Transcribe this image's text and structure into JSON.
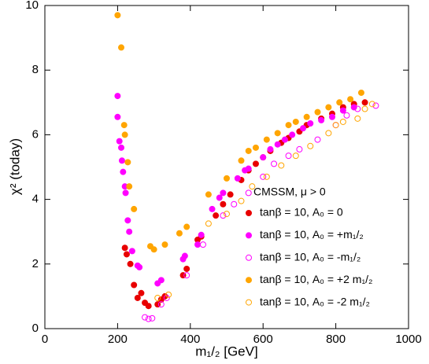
{
  "chart_data": {
    "type": "scatter",
    "xlabel": "m₁/₂ [GeV]",
    "ylabel": "χ² (today)",
    "xlim": [
      0,
      1000
    ],
    "ylim": [
      0,
      10
    ],
    "xticks": [
      0,
      200,
      400,
      600,
      800,
      1000
    ],
    "yticks": [
      0,
      2,
      4,
      6,
      8,
      10
    ],
    "legend_title": "CMSSM, μ > 0",
    "legend_position": "lower right",
    "series": [
      {
        "name": "tanβ = 10, A₀ = 0",
        "color": "#e80000",
        "marker": "filled",
        "x": [
          220,
          225,
          235,
          245,
          255,
          265,
          275,
          285,
          310,
          320,
          330,
          380,
          390,
          420,
          430,
          470,
          490,
          510,
          540,
          560,
          580,
          600,
          620,
          650,
          670,
          700,
          720,
          760,
          790,
          820,
          850,
          880
        ],
        "values": [
          2.5,
          2.3,
          2.0,
          1.35,
          0.95,
          1.1,
          0.8,
          0.7,
          0.75,
          0.9,
          1.0,
          1.65,
          1.85,
          2.75,
          2.85,
          3.5,
          3.85,
          4.15,
          4.6,
          4.9,
          5.1,
          5.3,
          5.5,
          5.75,
          5.9,
          6.1,
          6.3,
          6.5,
          6.65,
          6.85,
          6.95,
          7.0
        ]
      },
      {
        "name": "tanβ = 10, A₀ = +m₁/₂",
        "color": "#ff00ff",
        "marker": "filled",
        "x": [
          200,
          200,
          205,
          210,
          212,
          215,
          220,
          222,
          228,
          232,
          240,
          255,
          260,
          310,
          320,
          380,
          385,
          420,
          430,
          460,
          480,
          490,
          530,
          550,
          560,
          600,
          620,
          640,
          660,
          680,
          710,
          730,
          760,
          790,
          820,
          850
        ],
        "values": [
          7.2,
          6.55,
          5.8,
          5.6,
          5.2,
          4.85,
          4.4,
          4.2,
          3.35,
          3.0,
          2.4,
          1.95,
          1.9,
          1.4,
          1.5,
          2.15,
          2.25,
          2.6,
          2.9,
          3.7,
          4.05,
          4.2,
          4.65,
          4.9,
          4.95,
          5.3,
          5.55,
          5.7,
          5.85,
          6.0,
          6.2,
          6.35,
          6.45,
          6.55,
          6.75,
          6.85
        ]
      },
      {
        "name": "tanβ = 10, A₀ = -m₁/₂",
        "color": "#ff00ff",
        "marker": "open",
        "x": [
          275,
          285,
          295,
          320,
          335,
          390,
          435,
          490,
          520,
          560,
          600,
          630,
          670,
          700,
          750,
          800,
          830,
          860,
          910
        ],
        "values": [
          0.35,
          0.3,
          0.32,
          0.75,
          0.95,
          1.65,
          2.6,
          3.5,
          3.85,
          4.2,
          4.7,
          5.1,
          5.35,
          5.55,
          5.85,
          6.3,
          6.6,
          6.8,
          6.9
        ]
      },
      {
        "name": "tanβ = 10, A₀ = +2 m₁/₂",
        "color": "#ffa500",
        "marker": "filled",
        "x": [
          200,
          210,
          218,
          220,
          228,
          232,
          245,
          290,
          300,
          330,
          370,
          390,
          450,
          500,
          540,
          560,
          580,
          610,
          640,
          670,
          690,
          720,
          750,
          780,
          810,
          840,
          870
        ],
        "values": [
          9.7,
          8.7,
          6.3,
          6.0,
          5.15,
          4.4,
          3.7,
          2.55,
          2.45,
          2.6,
          2.95,
          3.15,
          4.15,
          4.65,
          5.2,
          5.5,
          5.6,
          5.85,
          6.05,
          6.3,
          6.4,
          6.55,
          6.7,
          6.85,
          7.0,
          7.1,
          7.3
        ]
      },
      {
        "name": "tanβ = 10, A₀ = -2 m₁/₂",
        "color": "#ffa500",
        "marker": "open",
        "x": [
          310,
          340,
          450,
          500,
          540,
          570,
          610,
          650,
          690,
          730,
          780,
          800,
          820,
          860,
          880,
          900
        ],
        "values": [
          0.95,
          1.05,
          3.25,
          3.55,
          3.95,
          4.4,
          4.7,
          5.05,
          5.35,
          5.65,
          6.05,
          6.3,
          6.4,
          6.5,
          6.8,
          6.95
        ]
      }
    ]
  }
}
